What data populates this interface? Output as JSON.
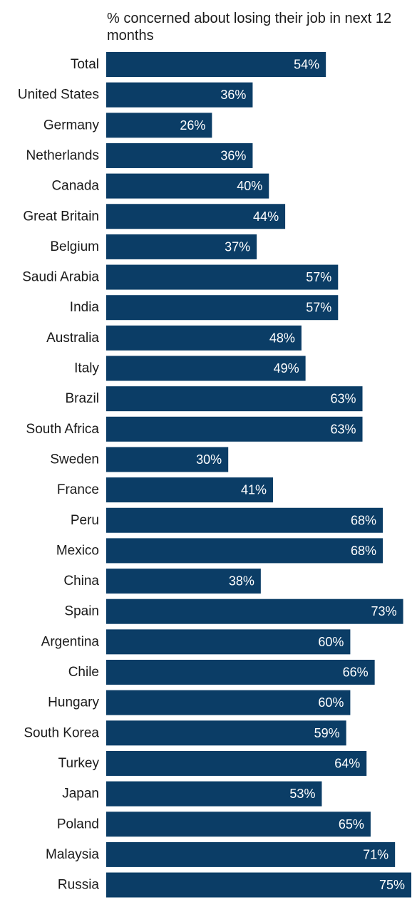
{
  "chart_data": {
    "type": "bar",
    "orientation": "horizontal",
    "title": "% concerned about losing their job in next 12 months",
    "xlabel": "",
    "ylabel": "",
    "xlim": [
      0,
      75
    ],
    "grid": false,
    "legend": "none",
    "bar_color": "#0b3d66",
    "value_suffix": "%",
    "categories": [
      "Total",
      "United States",
      "Germany",
      "Netherlands",
      "Canada",
      "Great Britain",
      "Belgium",
      "Saudi Arabia",
      "India",
      "Australia",
      "Italy",
      "Brazil",
      "South Africa",
      "Sweden",
      "France",
      "Peru",
      "Mexico",
      "China",
      "Spain",
      "Argentina",
      "Chile",
      "Hungary",
      "South Korea",
      "Turkey",
      "Japan",
      "Poland",
      "Malaysia",
      "Russia"
    ],
    "values": [
      54,
      36,
      26,
      36,
      40,
      44,
      37,
      57,
      57,
      48,
      49,
      63,
      63,
      30,
      41,
      68,
      68,
      38,
      73,
      60,
      66,
      60,
      59,
      64,
      53,
      65,
      71,
      75
    ]
  }
}
